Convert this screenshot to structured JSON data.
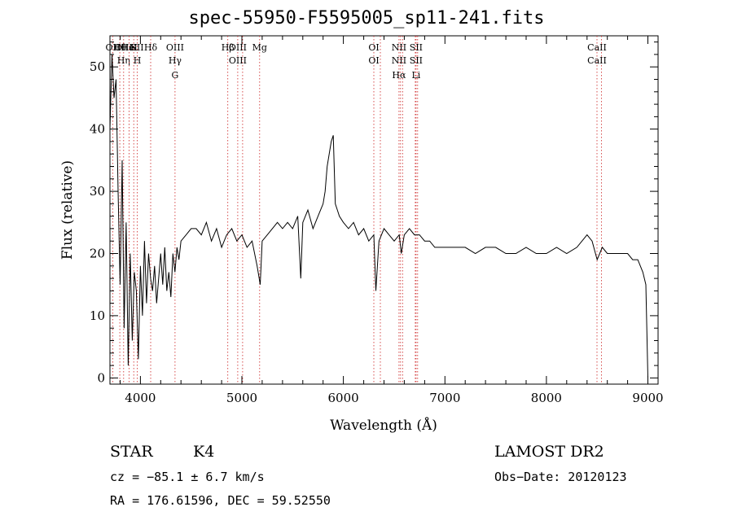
{
  "chart_data": {
    "type": "line",
    "title": "spec-55950-F5595005_sp11-241.fits",
    "xlabel": "Wavelength (Å)",
    "ylabel": "Flux (relative)",
    "xlim": [
      3700,
      9100
    ],
    "ylim": [
      -1,
      55
    ],
    "xticks": [
      4000,
      5000,
      6000,
      7000,
      8000,
      9000
    ],
    "yticks": [
      0,
      10,
      20,
      30,
      40,
      50
    ],
    "grid": false,
    "series": [
      {
        "x": [
          3700,
          3720,
          3740,
          3760,
          3780,
          3800,
          3820,
          3840,
          3860,
          3880,
          3900,
          3920,
          3940,
          3960,
          3980,
          4000,
          4020,
          4040,
          4060,
          4080,
          4100,
          4120,
          4140,
          4160,
          4180,
          4200,
          4220,
          4240,
          4260,
          4280,
          4300,
          4320,
          4340,
          4360,
          4380,
          4400,
          4450,
          4500,
          4550,
          4600,
          4650,
          4700,
          4750,
          4800,
          4850,
          4900,
          4950,
          5000,
          5050,
          5100,
          5150,
          5180,
          5200,
          5250,
          5300,
          5350,
          5400,
          5450,
          5500,
          5550,
          5580,
          5600,
          5650,
          5700,
          5750,
          5800,
          5820,
          5840,
          5860,
          5880,
          5900,
          5920,
          5940,
          5960,
          6000,
          6050,
          6100,
          6150,
          6200,
          6250,
          6300,
          6320,
          6350,
          6400,
          6450,
          6500,
          6550,
          6570,
          6600,
          6650,
          6700,
          6750,
          6800,
          6850,
          6900,
          6950,
          7000,
          7100,
          7200,
          7300,
          7400,
          7500,
          7600,
          7700,
          7800,
          7900,
          8000,
          8100,
          8200,
          8300,
          8400,
          8450,
          8500,
          8550,
          8600,
          8700,
          8800,
          8850,
          8900,
          8950,
          8980,
          9000
        ],
        "y": [
          40,
          52,
          45,
          48,
          30,
          15,
          35,
          8,
          25,
          2,
          20,
          6,
          17,
          14,
          3,
          18,
          10,
          22,
          12,
          20,
          16,
          14,
          18,
          12,
          16,
          20,
          15,
          21,
          14,
          17,
          13,
          20,
          17,
          21,
          19,
          22,
          23,
          24,
          24,
          23,
          25,
          22,
          24,
          21,
          23,
          24,
          22,
          23,
          21,
          22,
          18,
          15,
          22,
          23,
          24,
          25,
          24,
          25,
          24,
          26,
          16,
          25,
          27,
          24,
          26,
          28,
          30,
          34,
          36,
          38,
          39,
          28,
          27,
          26,
          25,
          24,
          25,
          23,
          24,
          22,
          23,
          14,
          22,
          24,
          23,
          22,
          23,
          20,
          23,
          24,
          23,
          23,
          22,
          22,
          21,
          21,
          21,
          21,
          21,
          20,
          21,
          21,
          20,
          20,
          21,
          20,
          20,
          21,
          20,
          21,
          23,
          22,
          19,
          21,
          20,
          20,
          20,
          19,
          19,
          17,
          15,
          0
        ]
      }
    ],
    "lines": [
      {
        "labels": [
          "OII"
        ],
        "x": [
          3727
        ]
      },
      {
        "labels": [
          "Hθ"
        ],
        "x": [
          3797
        ]
      },
      {
        "labels": [
          "OIII",
          "Hη"
        ],
        "x": [
          3835
        ]
      },
      {
        "labels": [
          "HeI"
        ],
        "x": [
          3889
        ]
      },
      {
        "labels": [
          "K"
        ],
        "x": [
          3934
        ]
      },
      {
        "labels": [
          "SII",
          "H"
        ],
        "x": [
          3969
        ]
      },
      {
        "labels": [
          "Hδ"
        ],
        "x": [
          4101
        ]
      },
      {
        "labels": [
          "OIII",
          "Hγ",
          "G"
        ],
        "x": [
          4341
        ]
      },
      {
        "labels": [
          "Hβ"
        ],
        "x": [
          4861
        ]
      },
      {
        "labels": [
          "OIII",
          "OIII"
        ],
        "x": [
          4959,
          5007
        ]
      },
      {
        "labels": [
          "Mg"
        ],
        "x": [
          5175
        ]
      },
      {
        "labels": [
          "OI",
          "OI"
        ],
        "x": [
          6300,
          6364
        ]
      },
      {
        "labels": [
          "NII",
          "NII",
          "Hα"
        ],
        "x": [
          6548,
          6583,
          6563
        ]
      },
      {
        "labels": [
          "SII",
          "SII",
          "Li"
        ],
        "x": [
          6716,
          6731,
          6708
        ]
      },
      {
        "labels": [
          "CaII",
          "CaII"
        ],
        "x": [
          8498,
          8542
        ]
      }
    ]
  },
  "info": {
    "object_class": "STAR",
    "subclass": "K4",
    "survey": "LAMOST DR2",
    "cz": "cz = −85.1 ± 6.7 km/s",
    "obs_date": "Obs−Date: 20120123",
    "radec": "RA = 176.61596, DEC =  59.52550"
  }
}
